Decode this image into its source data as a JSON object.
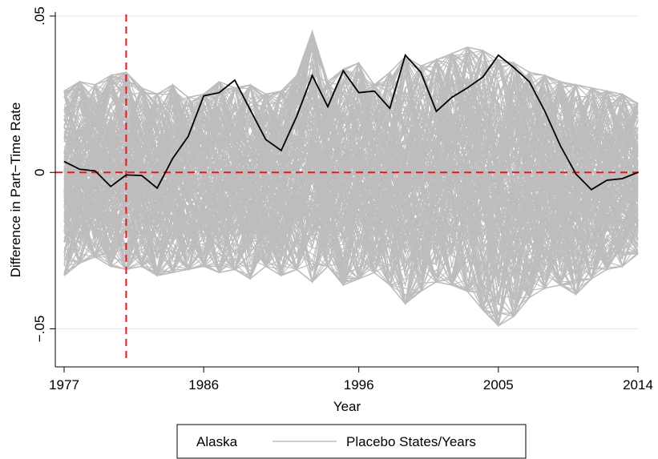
{
  "colors": {
    "treated": "#000000",
    "placebo": "#bdbdbd",
    "reference": "#e41a1c",
    "grid": "#e6e6e6"
  },
  "chart_data": {
    "type": "line",
    "xlabel": "Year",
    "ylabel": "Difference in Part−Time Rate",
    "xlim": [
      1977,
      2014
    ],
    "ylim": [
      -0.055,
      0.05
    ],
    "x_ticks": [
      1977,
      1986,
      1996,
      2005,
      2014
    ],
    "x_tick_labels": [
      "1977",
      "1986",
      "1996",
      "2005",
      "2014"
    ],
    "y_ticks": [
      -0.05,
      0,
      0.05
    ],
    "y_tick_labels": [
      "−.05",
      "0",
      ".05"
    ],
    "grid": "horizontal",
    "reference_lines": {
      "vertical_x": 1981,
      "horizontal_y": 0
    },
    "legend": {
      "placement": "bottom",
      "entries": [
        "Alaska",
        "Placebo States/Years"
      ]
    },
    "x": [
      1977,
      1978,
      1979,
      1980,
      1981,
      1982,
      1983,
      1984,
      1985,
      1986,
      1987,
      1988,
      1989,
      1990,
      1991,
      1992,
      1993,
      1994,
      1995,
      1996,
      1997,
      1998,
      1999,
      2000,
      2001,
      2002,
      2003,
      2004,
      2005,
      2006,
      2007,
      2008,
      2009,
      2010,
      2011,
      2012,
      2013,
      2014
    ],
    "series": [
      {
        "name": "Alaska",
        "values": [
          0.0035,
          0.001,
          0.0005,
          -0.0045,
          -0.0008,
          -0.001,
          -0.005,
          0.0045,
          0.0115,
          0.0245,
          0.0255,
          0.0295,
          0.02,
          0.0105,
          0.007,
          0.018,
          0.031,
          0.021,
          0.0325,
          0.0255,
          0.026,
          0.0205,
          0.0375,
          0.032,
          0.0195,
          0.024,
          0.027,
          0.0305,
          0.0375,
          0.0335,
          0.029,
          0.0195,
          0.0085,
          -0.0005,
          -0.0055,
          -0.0025,
          -0.002,
          0.0
        ]
      },
      {
        "name": "Placebo States/Years",
        "envelope": {
          "upper": [
            0.026,
            0.029,
            0.028,
            0.031,
            0.032,
            0.027,
            0.025,
            0.028,
            0.024,
            0.025,
            0.029,
            0.027,
            0.028,
            0.025,
            0.026,
            0.031,
            0.045,
            0.029,
            0.033,
            0.035,
            0.028,
            0.032,
            0.037,
            0.034,
            0.036,
            0.038,
            0.04,
            0.039,
            0.036,
            0.035,
            0.032,
            0.031,
            0.029,
            0.028,
            0.027,
            0.026,
            0.025,
            0.022
          ],
          "lower": [
            -0.033,
            -0.029,
            -0.027,
            -0.03,
            -0.031,
            -0.03,
            -0.033,
            -0.032,
            -0.031,
            -0.03,
            -0.032,
            -0.031,
            -0.034,
            -0.03,
            -0.033,
            -0.031,
            -0.035,
            -0.03,
            -0.036,
            -0.034,
            -0.032,
            -0.036,
            -0.042,
            -0.038,
            -0.035,
            -0.036,
            -0.038,
            -0.044,
            -0.049,
            -0.046,
            -0.04,
            -0.037,
            -0.036,
            -0.039,
            -0.034,
            -0.031,
            -0.03,
            -0.026
          ]
        }
      }
    ]
  }
}
